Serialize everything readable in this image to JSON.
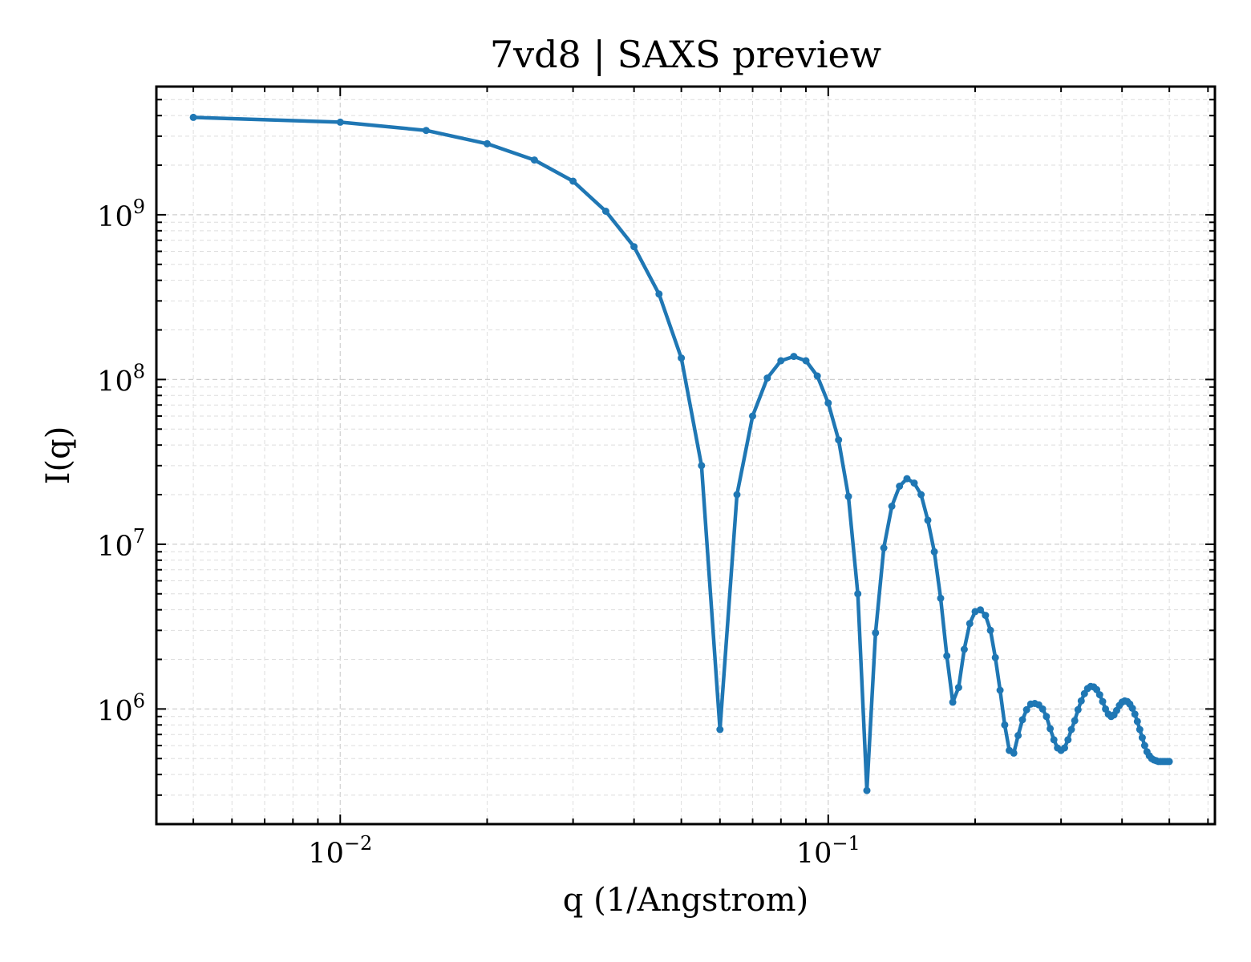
{
  "chart_data": {
    "type": "line",
    "title": "7vd8 | SAXS preview",
    "xlabel": "q (1/Angstrom)",
    "ylabel": "I(q)",
    "xscale": "log",
    "yscale": "log",
    "xlim": [
      0.0042,
      0.62
    ],
    "ylim": [
      200000,
      6000000000
    ],
    "grid": true,
    "color": "#1f77b4",
    "x_ticks": [
      {
        "value": 0.01,
        "base": "10",
        "exp": "−2"
      },
      {
        "value": 0.1,
        "base": "10",
        "exp": "−1"
      }
    ],
    "y_ticks": [
      {
        "value": 1000000,
        "base": "10",
        "exp": "6"
      },
      {
        "value": 10000000,
        "base": "10",
        "exp": "7"
      },
      {
        "value": 100000000,
        "base": "10",
        "exp": "8"
      },
      {
        "value": 1000000000,
        "base": "10",
        "exp": "9"
      }
    ],
    "series": [
      {
        "x": [
          0.005,
          0.01,
          0.015,
          0.02,
          0.025,
          0.03,
          0.035,
          0.04,
          0.045,
          0.05,
          0.055,
          0.06,
          0.065,
          0.07,
          0.075,
          0.08,
          0.085,
          0.09,
          0.095,
          0.1,
          0.105,
          0.11,
          0.115,
          0.12,
          0.125,
          0.13,
          0.135,
          0.14,
          0.145,
          0.15,
          0.155,
          0.16,
          0.165,
          0.17,
          0.175,
          0.18,
          0.185,
          0.19,
          0.195,
          0.2,
          0.205,
          0.21,
          0.215,
          0.22,
          0.225,
          0.23,
          0.235,
          0.24,
          0.245,
          0.25,
          0.255,
          0.26,
          0.265,
          0.27,
          0.275,
          0.28,
          0.285,
          0.29,
          0.295,
          0.3,
          0.305,
          0.31,
          0.315,
          0.32,
          0.325,
          0.33,
          0.335,
          0.34,
          0.345,
          0.35,
          0.355,
          0.36,
          0.365,
          0.37,
          0.375,
          0.38,
          0.385,
          0.39,
          0.395,
          0.4,
          0.405,
          0.41,
          0.415,
          0.42,
          0.425,
          0.43,
          0.435,
          0.44,
          0.445,
          0.45,
          0.455,
          0.46,
          0.465,
          0.47,
          0.475,
          0.48,
          0.485,
          0.49,
          0.495,
          0.5
        ],
        "y": [
          3900000000.0,
          3650000000.0,
          3250000000.0,
          2700000000.0,
          2150000000.0,
          1600000000.0,
          1050000000.0,
          640000000.0,
          330000000.0,
          135000000.0,
          30000000.0,
          750000.0,
          20000000.0,
          60000000.0,
          102000000.0,
          130000000.0,
          138000000.0,
          130000000.0,
          105000000.0,
          72000000.0,
          43000000.0,
          19500000.0,
          5000000.0,
          320000.0,
          2900000.0,
          9500000.0,
          17000000.0,
          22500000.0,
          25000000.0,
          23500000.0,
          20000000.0,
          14000000.0,
          9000000.0,
          4700000.0,
          2100000.0,
          1100000.0,
          1350000.0,
          2300000.0,
          3300000.0,
          3900000.0,
          4000000.0,
          3700000.0,
          3000000.0,
          2050000.0,
          1300000.0,
          800000.0,
          560000.0,
          540000.0,
          690000.0,
          860000.0,
          990000.0,
          1070000.0,
          1080000.0,
          1060000.0,
          1000000.0,
          900000.0,
          760000.0,
          650000.0,
          580000.0,
          560000.0,
          580000.0,
          650000.0,
          750000.0,
          850000.0,
          990000.0,
          1120000.0,
          1240000.0,
          1330000.0,
          1370000.0,
          1360000.0,
          1310000.0,
          1220000.0,
          1110000.0,
          1000000.0,
          930000.0,
          900000.0,
          920000.0,
          980000.0,
          1050000.0,
          1100000.0,
          1120000.0,
          1110000.0,
          1070000.0,
          1010000.0,
          930000.0,
          840000.0,
          750000.0,
          670000.0,
          600000.0,
          550000.0,
          520000.0,
          500000.0,
          490000.0,
          485000.0,
          480000.0,
          480000.0,
          480000.0,
          480000.0,
          480000.0,
          480000.0
        ]
      }
    ]
  }
}
